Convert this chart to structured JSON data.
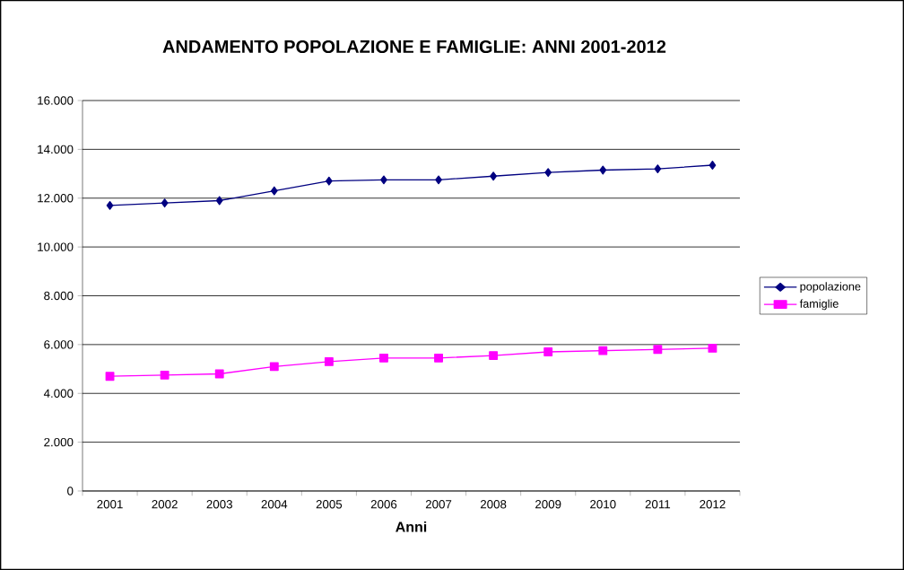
{
  "chart_data": {
    "type": "line",
    "title": "ANDAMENTO POPOLAZIONE E FAMIGLIE: ANNI 2001-2012",
    "xlabel": "Anni",
    "categories": [
      "2001",
      "2002",
      "2003",
      "2004",
      "2005",
      "2006",
      "2007",
      "2008",
      "2009",
      "2010",
      "2011",
      "2012"
    ],
    "series": [
      {
        "name": "popolazione",
        "color": "#000080",
        "marker": "diamond",
        "values": [
          11700,
          11800,
          11900,
          12300,
          12700,
          12750,
          12750,
          12900,
          13050,
          13150,
          13200,
          13350
        ]
      },
      {
        "name": "famiglie",
        "color": "#ff00ff",
        "marker": "square",
        "values": [
          4700,
          4750,
          4800,
          5100,
          5300,
          5450,
          5450,
          5550,
          5700,
          5750,
          5800,
          5850
        ]
      }
    ],
    "ylim": [
      0,
      16000
    ],
    "yticks": [
      0,
      {
        "value": 2000,
        "label": "2.000"
      },
      {
        "value": 4000,
        "label": "4.000"
      },
      {
        "value": 6000,
        "label": "6.000"
      },
      {
        "value": 8000,
        "label": "8.000"
      },
      {
        "value": 10000,
        "label": "10.000"
      },
      {
        "value": 12000,
        "label": "12.000"
      },
      {
        "value": 14000,
        "label": "14.000"
      },
      {
        "value": 16000,
        "label": "16.000"
      }
    ],
    "grid": "y",
    "legend": "right",
    "line_style": "solid"
  }
}
